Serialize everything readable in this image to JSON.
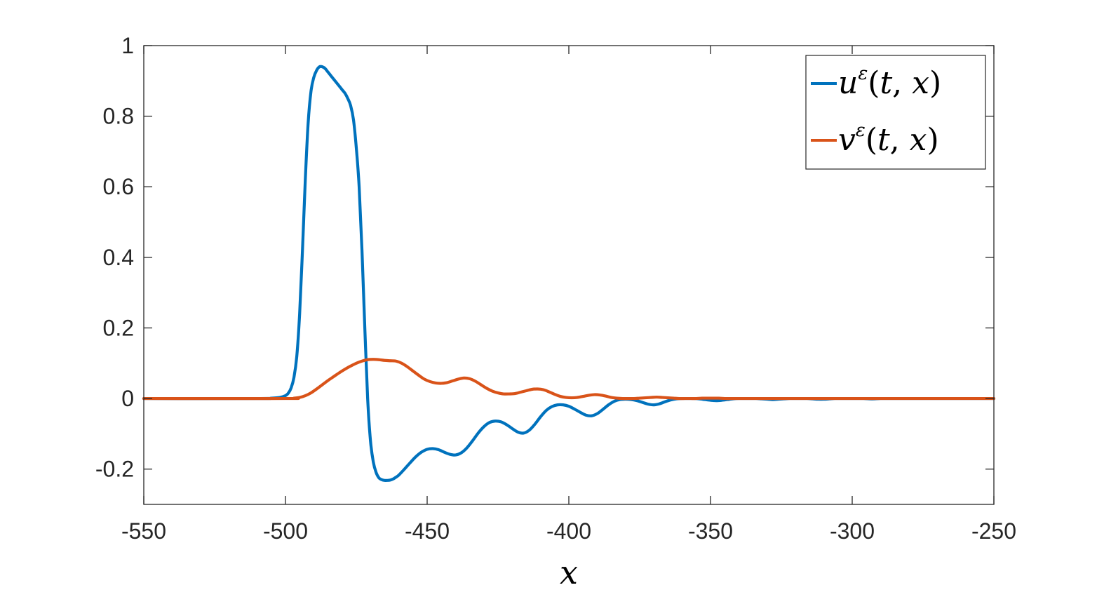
{
  "chart_data": {
    "type": "line",
    "title": "",
    "xlabel": "x",
    "ylabel": "",
    "xlim": [
      -550,
      -250
    ],
    "ylim": [
      -0.3,
      1
    ],
    "xticks": [
      -550,
      -500,
      -450,
      -400,
      -350,
      -300,
      -250
    ],
    "yticks": [
      -0.2,
      0,
      0.2,
      0.4,
      0.6,
      0.8,
      1
    ],
    "xtick_labels": [
      "-550",
      "-500",
      "-450",
      "-400",
      "-350",
      "-300",
      "-250"
    ],
    "ytick_labels": [
      "-0.2",
      "0",
      "0.2",
      "0.4",
      "0.6",
      "0.8",
      "1"
    ],
    "grid": false,
    "legend_position": "top-right",
    "series": [
      {
        "name": "uε(t, x)",
        "color": "#0072BD",
        "x": [
          -550,
          -510,
          -505,
          -502,
          -500,
          -499,
          -498,
          -497,
          -496,
          -495,
          -494,
          -493,
          -492,
          -491,
          -490,
          -489,
          -488,
          -487,
          -486,
          -485,
          -484,
          -483,
          -482,
          -481,
          -480,
          -479,
          -478,
          -477,
          -476,
          -475,
          -474,
          -473,
          -472,
          -471,
          -470,
          -469,
          -468,
          -467,
          -466,
          -465,
          -464,
          -463,
          -462,
          -461,
          -460,
          -458,
          -456,
          -454,
          -452,
          -450,
          -448,
          -446,
          -444,
          -442,
          -440,
          -438,
          -436,
          -434,
          -432,
          -430,
          -428,
          -426,
          -424,
          -422,
          -420,
          -418,
          -416,
          -414,
          -412,
          -410,
          -408,
          -406,
          -404,
          -402,
          -400,
          -398,
          -396,
          -394,
          -392,
          -390,
          -388,
          -386,
          -384,
          -382,
          -380,
          -378,
          -376,
          -374,
          -372,
          -370,
          -368,
          -366,
          -364,
          -362,
          -360,
          -358,
          -356,
          -354,
          -352,
          -350,
          -348,
          -346,
          -344,
          -342,
          -340,
          -338,
          -336,
          -334,
          -332,
          -330,
          -328,
          -326,
          -324,
          -322,
          -320,
          -318,
          -316,
          -314,
          -312,
          -310,
          -308,
          -306,
          -304,
          -302,
          -300,
          -298,
          -296,
          -294,
          -292,
          -290,
          -288,
          -286,
          -284,
          -282,
          -280,
          -278,
          -276,
          -274,
          -272,
          -270,
          -260,
          -250
        ],
        "y": [
          0,
          0,
          0.001,
          0.003,
          0.008,
          0.015,
          0.03,
          0.06,
          0.12,
          0.24,
          0.42,
          0.62,
          0.78,
          0.87,
          0.91,
          0.93,
          0.94,
          0.94,
          0.935,
          0.925,
          0.915,
          0.905,
          0.895,
          0.885,
          0.875,
          0.865,
          0.85,
          0.83,
          0.79,
          0.71,
          0.6,
          0.42,
          0.2,
          -0.0,
          -0.12,
          -0.18,
          -0.21,
          -0.225,
          -0.23,
          -0.232,
          -0.232,
          -0.231,
          -0.228,
          -0.223,
          -0.217,
          -0.2,
          -0.182,
          -0.165,
          -0.152,
          -0.144,
          -0.142,
          -0.145,
          -0.152,
          -0.158,
          -0.16,
          -0.154,
          -0.14,
          -0.12,
          -0.098,
          -0.08,
          -0.068,
          -0.064,
          -0.066,
          -0.074,
          -0.085,
          -0.095,
          -0.098,
          -0.09,
          -0.073,
          -0.052,
          -0.034,
          -0.023,
          -0.018,
          -0.018,
          -0.022,
          -0.03,
          -0.039,
          -0.047,
          -0.049,
          -0.043,
          -0.031,
          -0.018,
          -0.008,
          -0.003,
          -0.002,
          -0.003,
          -0.006,
          -0.011,
          -0.016,
          -0.018,
          -0.015,
          -0.009,
          -0.004,
          -0.001,
          0,
          0,
          0,
          -0.001,
          -0.003,
          -0.005,
          -0.006,
          -0.005,
          -0.003,
          -0.001,
          0,
          0,
          0,
          0,
          -0.001,
          -0.002,
          -0.003,
          -0.002,
          -0.001,
          0,
          0,
          0,
          0,
          -0.001,
          -0.002,
          -0.002,
          -0.001,
          0,
          0,
          0,
          0,
          0,
          0,
          -0.001,
          -0.001,
          0,
          0,
          0,
          0,
          0,
          0,
          0,
          0,
          0,
          0,
          0,
          0,
          0
        ]
      },
      {
        "name": "vε(t, x)",
        "color": "#D95319",
        "x": [
          -550,
          -500,
          -497,
          -495,
          -493,
          -491,
          -489,
          -487,
          -485,
          -483,
          -481,
          -479,
          -477,
          -475,
          -473,
          -471,
          -469,
          -467,
          -465,
          -463,
          -461,
          -459,
          -457,
          -455,
          -453,
          -451,
          -449,
          -447,
          -445,
          -443,
          -441,
          -439,
          -437,
          -435,
          -433,
          -431,
          -429,
          -427,
          -425,
          -423,
          -421,
          -419,
          -417,
          -415,
          -413,
          -411,
          -409,
          -407,
          -405,
          -403,
          -401,
          -399,
          -397,
          -395,
          -393,
          -391,
          -389,
          -387,
          -385,
          -383,
          -381,
          -379,
          -377,
          -375,
          -373,
          -371,
          -369,
          -367,
          -365,
          -363,
          -361,
          -359,
          -357,
          -355,
          -353,
          -351,
          -349,
          -347,
          -345,
          -343,
          -341,
          -339,
          -337,
          -335,
          -333,
          -331,
          -329,
          -327,
          -325,
          -323,
          -321,
          -319,
          -317,
          -315,
          -313,
          -311,
          -309,
          -307,
          -305,
          -303,
          -301,
          -299,
          -297,
          -295,
          -293,
          -291,
          -289,
          -287,
          -285,
          -283,
          -281,
          -279,
          -277,
          -275,
          -273,
          -271,
          -260,
          -250
        ],
        "y": [
          0,
          0,
          0.001,
          0.003,
          0.008,
          0.016,
          0.027,
          0.039,
          0.051,
          0.062,
          0.073,
          0.083,
          0.092,
          0.1,
          0.106,
          0.11,
          0.111,
          0.11,
          0.108,
          0.107,
          0.106,
          0.1,
          0.09,
          0.078,
          0.066,
          0.055,
          0.048,
          0.044,
          0.043,
          0.045,
          0.05,
          0.055,
          0.058,
          0.056,
          0.049,
          0.039,
          0.029,
          0.021,
          0.016,
          0.013,
          0.013,
          0.014,
          0.018,
          0.022,
          0.026,
          0.027,
          0.025,
          0.019,
          0.012,
          0.006,
          0.003,
          0.002,
          0.003,
          0.006,
          0.009,
          0.011,
          0.01,
          0.007,
          0.003,
          0.001,
          0,
          0,
          0,
          0.001,
          0.002,
          0.003,
          0.004,
          0.003,
          0.002,
          0.001,
          0,
          0,
          0,
          0,
          0.001,
          0.001,
          0.001,
          0.001,
          0,
          0,
          0,
          0,
          0,
          0,
          0,
          0,
          0,
          0,
          0,
          0,
          0,
          0,
          0,
          0,
          0,
          0,
          0,
          0,
          0,
          0,
          0,
          0,
          0,
          0,
          0,
          0,
          0,
          0,
          0,
          0,
          0,
          0,
          0,
          0,
          0,
          0,
          0,
          0
        ]
      }
    ]
  }
}
